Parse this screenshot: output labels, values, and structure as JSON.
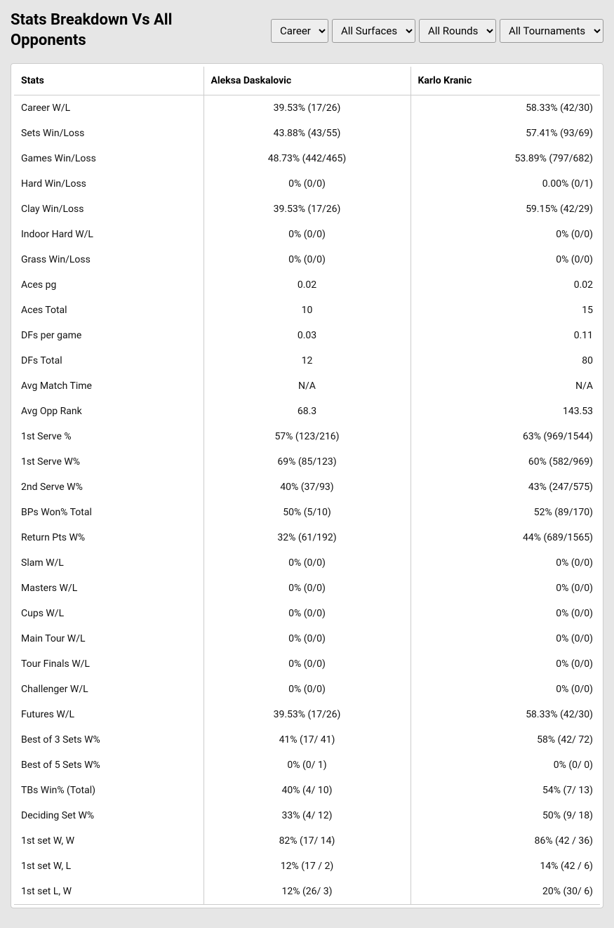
{
  "title": "Stats Breakdown Vs All Opponents",
  "filters": {
    "period": {
      "selected": "Career"
    },
    "surface": {
      "selected": "All Surfaces"
    },
    "round": {
      "selected": "All Rounds"
    },
    "tournament": {
      "selected": "All Tournaments"
    }
  },
  "columns": {
    "stat": "Stats",
    "player1": "Aleksa Daskalovic",
    "player2": "Karlo Kranic"
  },
  "rows": [
    {
      "stat": "Career W/L",
      "p1": "39.53% (17/26)",
      "p2": "58.33% (42/30)"
    },
    {
      "stat": "Sets Win/Loss",
      "p1": "43.88% (43/55)",
      "p2": "57.41% (93/69)"
    },
    {
      "stat": "Games Win/Loss",
      "p1": "48.73% (442/465)",
      "p2": "53.89% (797/682)"
    },
    {
      "stat": "Hard Win/Loss",
      "p1": "0% (0/0)",
      "p2": "0.00% (0/1)"
    },
    {
      "stat": "Clay Win/Loss",
      "p1": "39.53% (17/26)",
      "p2": "59.15% (42/29)"
    },
    {
      "stat": "Indoor Hard W/L",
      "p1": "0% (0/0)",
      "p2": "0% (0/0)"
    },
    {
      "stat": "Grass Win/Loss",
      "p1": "0% (0/0)",
      "p2": "0% (0/0)"
    },
    {
      "stat": "Aces pg",
      "p1": "0.02",
      "p2": "0.02"
    },
    {
      "stat": "Aces Total",
      "p1": "10",
      "p2": "15"
    },
    {
      "stat": "DFs per game",
      "p1": "0.03",
      "p2": "0.11"
    },
    {
      "stat": "DFs Total",
      "p1": "12",
      "p2": "80"
    },
    {
      "stat": "Avg Match Time",
      "p1": "N/A",
      "p2": "N/A"
    },
    {
      "stat": "Avg Opp Rank",
      "p1": "68.3",
      "p2": "143.53"
    },
    {
      "stat": "1st Serve %",
      "p1": "57% (123/216)",
      "p2": "63% (969/1544)"
    },
    {
      "stat": "1st Serve W%",
      "p1": "69% (85/123)",
      "p2": "60% (582/969)"
    },
    {
      "stat": "2nd Serve W%",
      "p1": "40% (37/93)",
      "p2": "43% (247/575)"
    },
    {
      "stat": "BPs Won% Total",
      "p1": "50% (5/10)",
      "p2": "52% (89/170)"
    },
    {
      "stat": "Return Pts W%",
      "p1": "32% (61/192)",
      "p2": "44% (689/1565)"
    },
    {
      "stat": "Slam W/L",
      "p1": "0% (0/0)",
      "p2": "0% (0/0)"
    },
    {
      "stat": "Masters W/L",
      "p1": "0% (0/0)",
      "p2": "0% (0/0)"
    },
    {
      "stat": "Cups W/L",
      "p1": "0% (0/0)",
      "p2": "0% (0/0)"
    },
    {
      "stat": "Main Tour W/L",
      "p1": "0% (0/0)",
      "p2": "0% (0/0)"
    },
    {
      "stat": "Tour Finals W/L",
      "p1": "0% (0/0)",
      "p2": "0% (0/0)"
    },
    {
      "stat": "Challenger W/L",
      "p1": "0% (0/0)",
      "p2": "0% (0/0)"
    },
    {
      "stat": "Futures W/L",
      "p1": "39.53% (17/26)",
      "p2": "58.33% (42/30)"
    },
    {
      "stat": "Best of 3 Sets W%",
      "p1": "41% (17/ 41)",
      "p2": "58% (42/ 72)"
    },
    {
      "stat": "Best of 5 Sets W%",
      "p1": "0% (0/ 1)",
      "p2": "0% (0/ 0)"
    },
    {
      "stat": "TBs Win% (Total)",
      "p1": "40% (4/ 10)",
      "p2": "54% (7/ 13)"
    },
    {
      "stat": "Deciding Set W%",
      "p1": "33% (4/ 12)",
      "p2": "50% (9/ 18)"
    },
    {
      "stat": "1st set W, W",
      "p1": "82% (17/ 14)",
      "p2": "86% (42 / 36)"
    },
    {
      "stat": "1st set W, L",
      "p1": "12% (17 / 2)",
      "p2": "14% (42 / 6)"
    },
    {
      "stat": "1st set L, W",
      "p1": "12% (26/ 3)",
      "p2": "20% (30/ 6)"
    }
  ],
  "colors": {
    "page_bg": "#e6e6e6",
    "table_bg": "#ffffff",
    "border": "#cccccc",
    "text": "#000000"
  }
}
